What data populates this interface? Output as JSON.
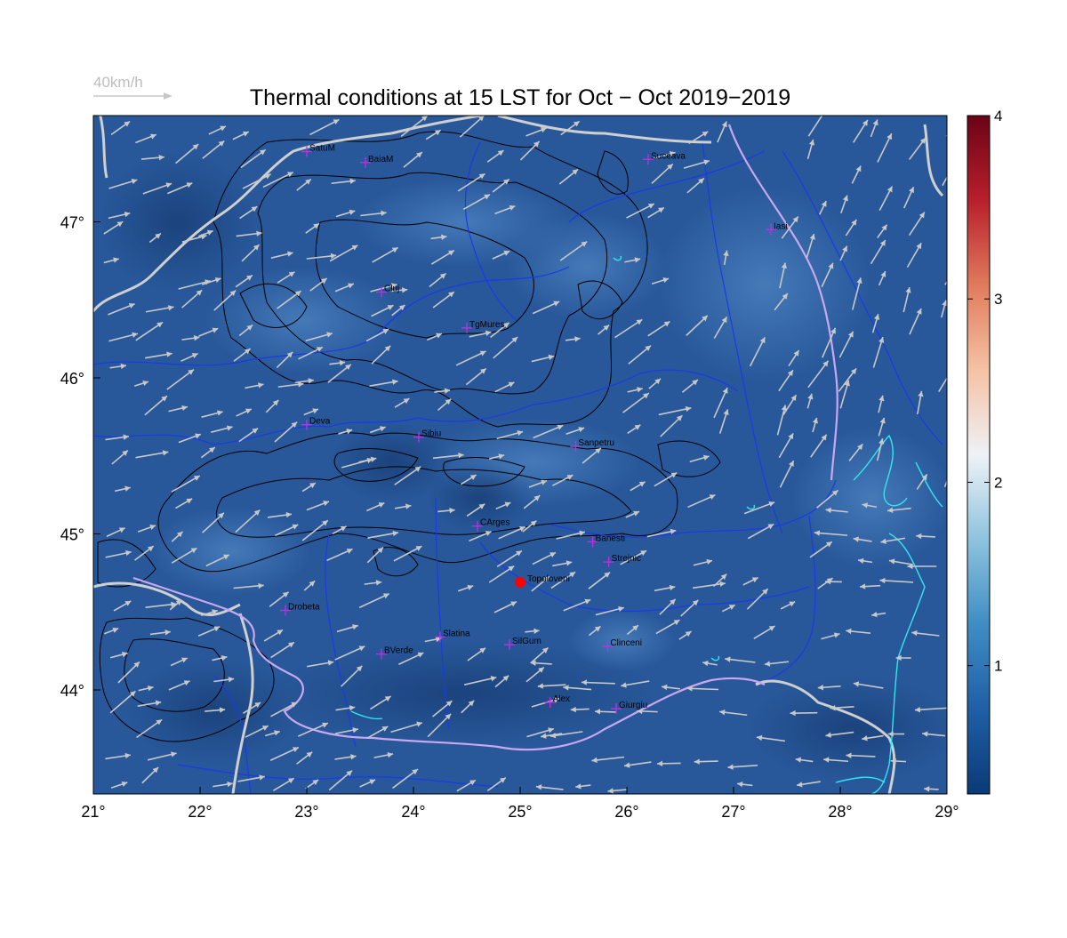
{
  "title": "Thermal conditions at 15 LST for Oct − Oct  2019−2019",
  "wind_legend": {
    "label": "40km/h",
    "arrow_color": "#c8c8c8"
  },
  "x_ticks": [
    "21°",
    "22°",
    "23°",
    "24°",
    "25°",
    "26°",
    "27°",
    "28°",
    "29°"
  ],
  "y_ticks": [
    "44°",
    "45°",
    "46°",
    "47°"
  ],
  "colorbar": {
    "ticks": [
      "1",
      "2",
      "3",
      "4"
    ],
    "range": [
      0.3,
      4
    ],
    "colors": [
      "#0a3a78",
      "#1f5fa6",
      "#3f8dc4",
      "#8ec3de",
      "#eef2f6",
      "#f6c2a4",
      "#e07b5c",
      "#b81f2b",
      "#6b0316"
    ]
  },
  "map": {
    "background_color": "#28589a",
    "river_color": "#1a3ae8",
    "border_color": "#cfcfcf",
    "contour_color": "#000000",
    "marker_color": "#c030e0",
    "highlight_color": "#ff0000",
    "lake_color": "#31e6f0",
    "danube_color": "#c9a8ef"
  },
  "cities": [
    {
      "name": "SatuM",
      "lon": 23.0,
      "lat": 47.45
    },
    {
      "name": "BaiaM",
      "lon": 23.55,
      "lat": 47.38
    },
    {
      "name": "Suceava",
      "lon": 26.2,
      "lat": 47.4
    },
    {
      "name": "Iasi",
      "lon": 27.35,
      "lat": 46.95
    },
    {
      "name": "Cluj",
      "lon": 23.7,
      "lat": 46.55
    },
    {
      "name": "TgMures",
      "lon": 24.5,
      "lat": 46.32
    },
    {
      "name": "Deva",
      "lon": 23.0,
      "lat": 45.7
    },
    {
      "name": "Sibiu",
      "lon": 24.05,
      "lat": 45.62
    },
    {
      "name": "Sanpetru",
      "lon": 25.52,
      "lat": 45.56
    },
    {
      "name": "CArges",
      "lon": 24.6,
      "lat": 45.05
    },
    {
      "name": "Banesti",
      "lon": 25.68,
      "lat": 44.95
    },
    {
      "name": "Strejnic",
      "lon": 25.83,
      "lat": 44.82
    },
    {
      "name": "Drobeta",
      "lon": 22.8,
      "lat": 44.51
    },
    {
      "name": "Slatina",
      "lon": 24.25,
      "lat": 44.34
    },
    {
      "name": "SilGum",
      "lon": 24.9,
      "lat": 44.29
    },
    {
      "name": "Clinceni",
      "lon": 25.82,
      "lat": 44.28
    },
    {
      "name": "BVerde",
      "lon": 23.7,
      "lat": 44.23
    },
    {
      "name": "Alex",
      "lon": 25.28,
      "lat": 43.92
    },
    {
      "name": "Giurgiu",
      "lon": 25.9,
      "lat": 43.88
    }
  ],
  "highlight": {
    "name": "Topoloveni",
    "lon": 25.0,
    "lat": 44.69
  }
}
